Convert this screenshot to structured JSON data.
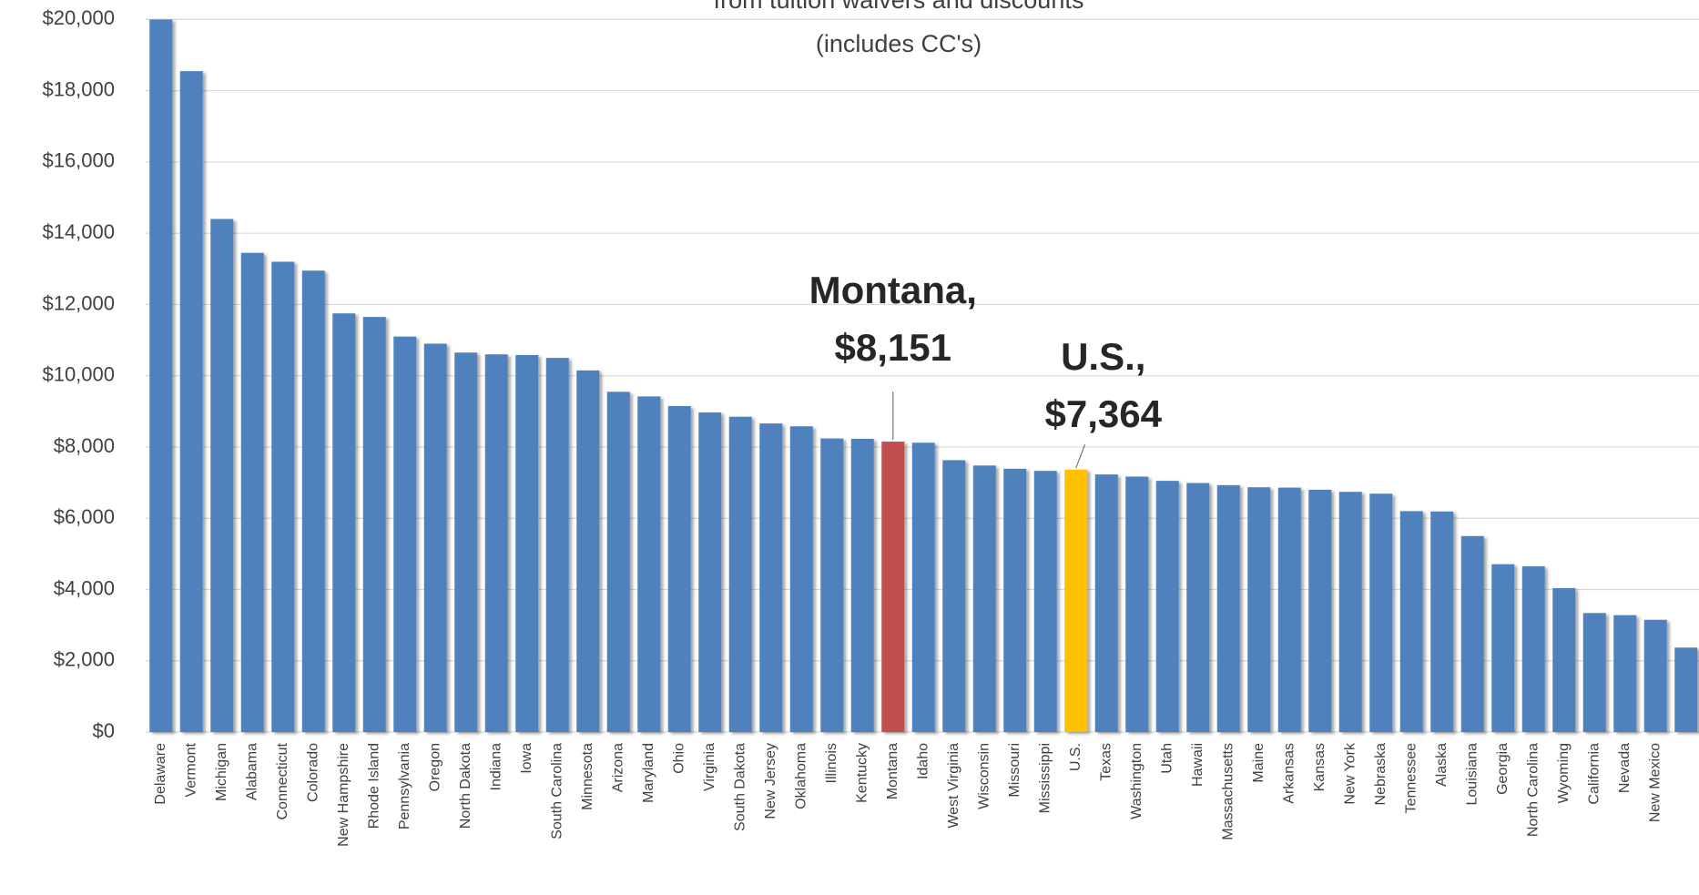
{
  "chart_data": {
    "type": "bar",
    "title": "from tuition waivers and discounts",
    "subtitle": "(includes CC's)",
    "categories": [
      "Delaware",
      "Vermont",
      "Michigan",
      "Alabama",
      "Connecticut",
      "Colorado",
      "New Hampshire",
      "Rhode Island",
      "Pennsylvania",
      "Oregon",
      "North Dakota",
      "Indiana",
      "Iowa",
      "South Carolina",
      "Minnesota",
      "Arizona",
      "Maryland",
      "Ohio",
      "Virginia",
      "South Dakota",
      "New Jersey",
      "Oklahoma",
      "Illinois",
      "Kentucky",
      "Montana",
      "Idaho",
      "West Virginia",
      "Wisconsin",
      "Missouri",
      "Mississippi",
      "U.S.",
      "Texas",
      "Washington",
      "Utah",
      "Hawaii",
      "Massachusetts",
      "Maine",
      "Arkansas",
      "Kansas",
      "New York",
      "Nebraska",
      "Tennessee",
      "Alaska",
      "Louisiana",
      "Georgia",
      "North Carolina",
      "Wyoming",
      "California",
      "Nevada",
      "New Mexico",
      null
    ],
    "values": [
      20000,
      18550,
      14400,
      13450,
      13200,
      12950,
      11750,
      11650,
      11100,
      10900,
      10650,
      10600,
      10580,
      10500,
      10150,
      9550,
      9420,
      9150,
      8970,
      8850,
      8660,
      8580,
      8240,
      8230,
      8151,
      8120,
      7630,
      7480,
      7390,
      7330,
      7364,
      7230,
      7170,
      7050,
      6990,
      6930,
      6870,
      6860,
      6800,
      6740,
      6690,
      6200,
      6190,
      5500,
      4710,
      4650,
      4040,
      3340,
      3280,
      3150,
      2370
    ],
    "value_labels": [
      null,
      null,
      null,
      null,
      null,
      null,
      null,
      null,
      null,
      null,
      null,
      null,
      null,
      null,
      null,
      null,
      null,
      null,
      null,
      null,
      null,
      null,
      null,
      null,
      "$8,151",
      null,
      null,
      null,
      null,
      null,
      "$7,364",
      null,
      null,
      null,
      null,
      null,
      null,
      null,
      null,
      null,
      null,
      null,
      null,
      null,
      null,
      null,
      null,
      null,
      null,
      null,
      null
    ],
    "annotations": [
      "Montana,",
      "U.S.,"
    ],
    "colors": [
      "#4f81bd",
      "#4f81bd",
      "#4f81bd",
      "#4f81bd",
      "#4f81bd",
      "#4f81bd",
      "#4f81bd",
      "#4f81bd",
      "#4f81bd",
      "#4f81bd",
      "#4f81bd",
      "#4f81bd",
      "#4f81bd",
      "#4f81bd",
      "#4f81bd",
      "#4f81bd",
      "#4f81bd",
      "#4f81bd",
      "#4f81bd",
      "#4f81bd",
      "#4f81bd",
      "#4f81bd",
      "#4f81bd",
      "#4f81bd",
      "#c0504d",
      "#4f81bd",
      "#4f81bd",
      "#4f81bd",
      "#4f81bd",
      "#4f81bd",
      "#ffc000",
      "#4f81bd",
      "#4f81bd",
      "#4f81bd",
      "#4f81bd",
      "#4f81bd",
      "#4f81bd",
      "#4f81bd",
      "#4f81bd",
      "#4f81bd",
      "#4f81bd",
      "#4f81bd",
      "#4f81bd",
      "#4f81bd",
      "#4f81bd",
      "#4f81bd",
      "#4f81bd",
      "#4f81bd",
      "#4f81bd",
      "#4f81bd",
      "#4f81bd"
    ],
    "ylim": [
      0,
      20000
    ],
    "yticks": [
      {
        "value": 0,
        "label": "$0"
      },
      {
        "value": 2000,
        "label": "$2,000"
      },
      {
        "value": 4000,
        "label": "$4,000"
      },
      {
        "value": 6000,
        "label": "$6,000"
      },
      {
        "value": 8000,
        "label": "$8,000"
      },
      {
        "value": 10000,
        "label": "$10,000"
      },
      {
        "value": 12000,
        "label": "$12,000"
      },
      {
        "value": 14000,
        "label": "$14,000"
      },
      {
        "value": 16000,
        "label": "$16,000"
      },
      {
        "value": 18000,
        "label": "$18,000"
      },
      {
        "value": 20000,
        "label": "$20,000"
      }
    ],
    "grid": true
  }
}
